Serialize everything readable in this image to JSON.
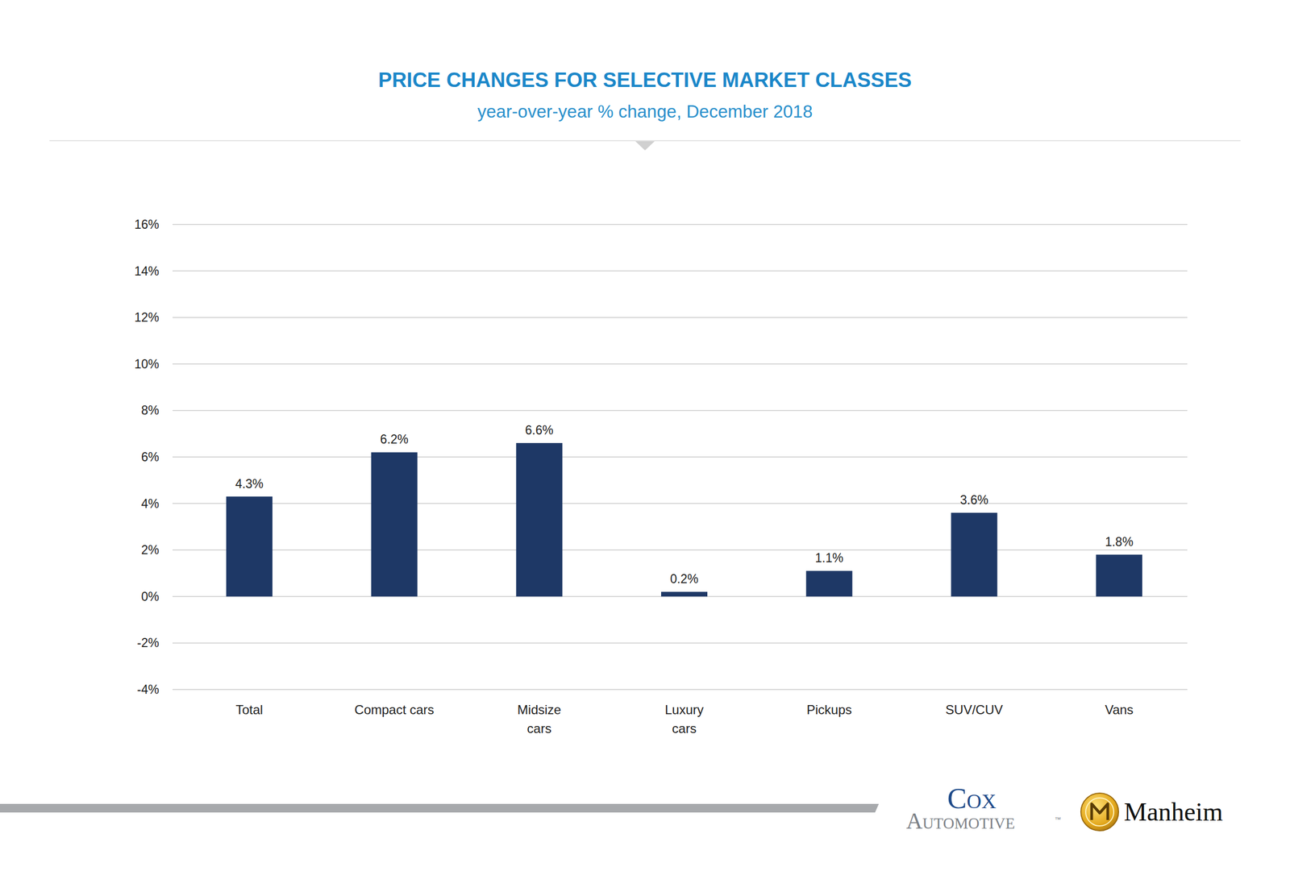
{
  "chart_data": {
    "type": "bar",
    "title": "PRICE CHANGES FOR SELECTIVE MARKET CLASSES",
    "subtitle": "year-over-year % change, December 2018",
    "categories": [
      "Total",
      "Compact cars",
      "Midsize\ncars",
      "Luxury\ncars",
      "Pickups",
      "SUV/CUV",
      "Vans"
    ],
    "values": [
      4.3,
      6.2,
      6.6,
      0.2,
      1.1,
      3.6,
      1.8
    ],
    "value_labels": [
      "4.3%",
      "6.2%",
      "6.6%",
      "0.2%",
      "1.1%",
      "3.6%",
      "1.8%"
    ],
    "color": "#1e3866",
    "ylim": [
      -4,
      16
    ],
    "yticks": [
      {
        "value": -4,
        "label": "-4%"
      },
      {
        "value": -2,
        "label": "-2%"
      },
      {
        "value": 0,
        "label": "0%"
      },
      {
        "value": 2,
        "label": "2%"
      },
      {
        "value": 4,
        "label": "4%"
      },
      {
        "value": 6,
        "label": "6%"
      },
      {
        "value": 8,
        "label": "8%"
      },
      {
        "value": 10,
        "label": "10%"
      },
      {
        "value": 12,
        "label": "12%"
      },
      {
        "value": 14,
        "label": "14%"
      },
      {
        "value": 16,
        "label": "16%"
      }
    ],
    "grid": true,
    "data_labels": true
  },
  "footer": {
    "cox": "Cox",
    "automotive": "Automotive",
    "trademark": "™",
    "manheim": "Manheim"
  }
}
